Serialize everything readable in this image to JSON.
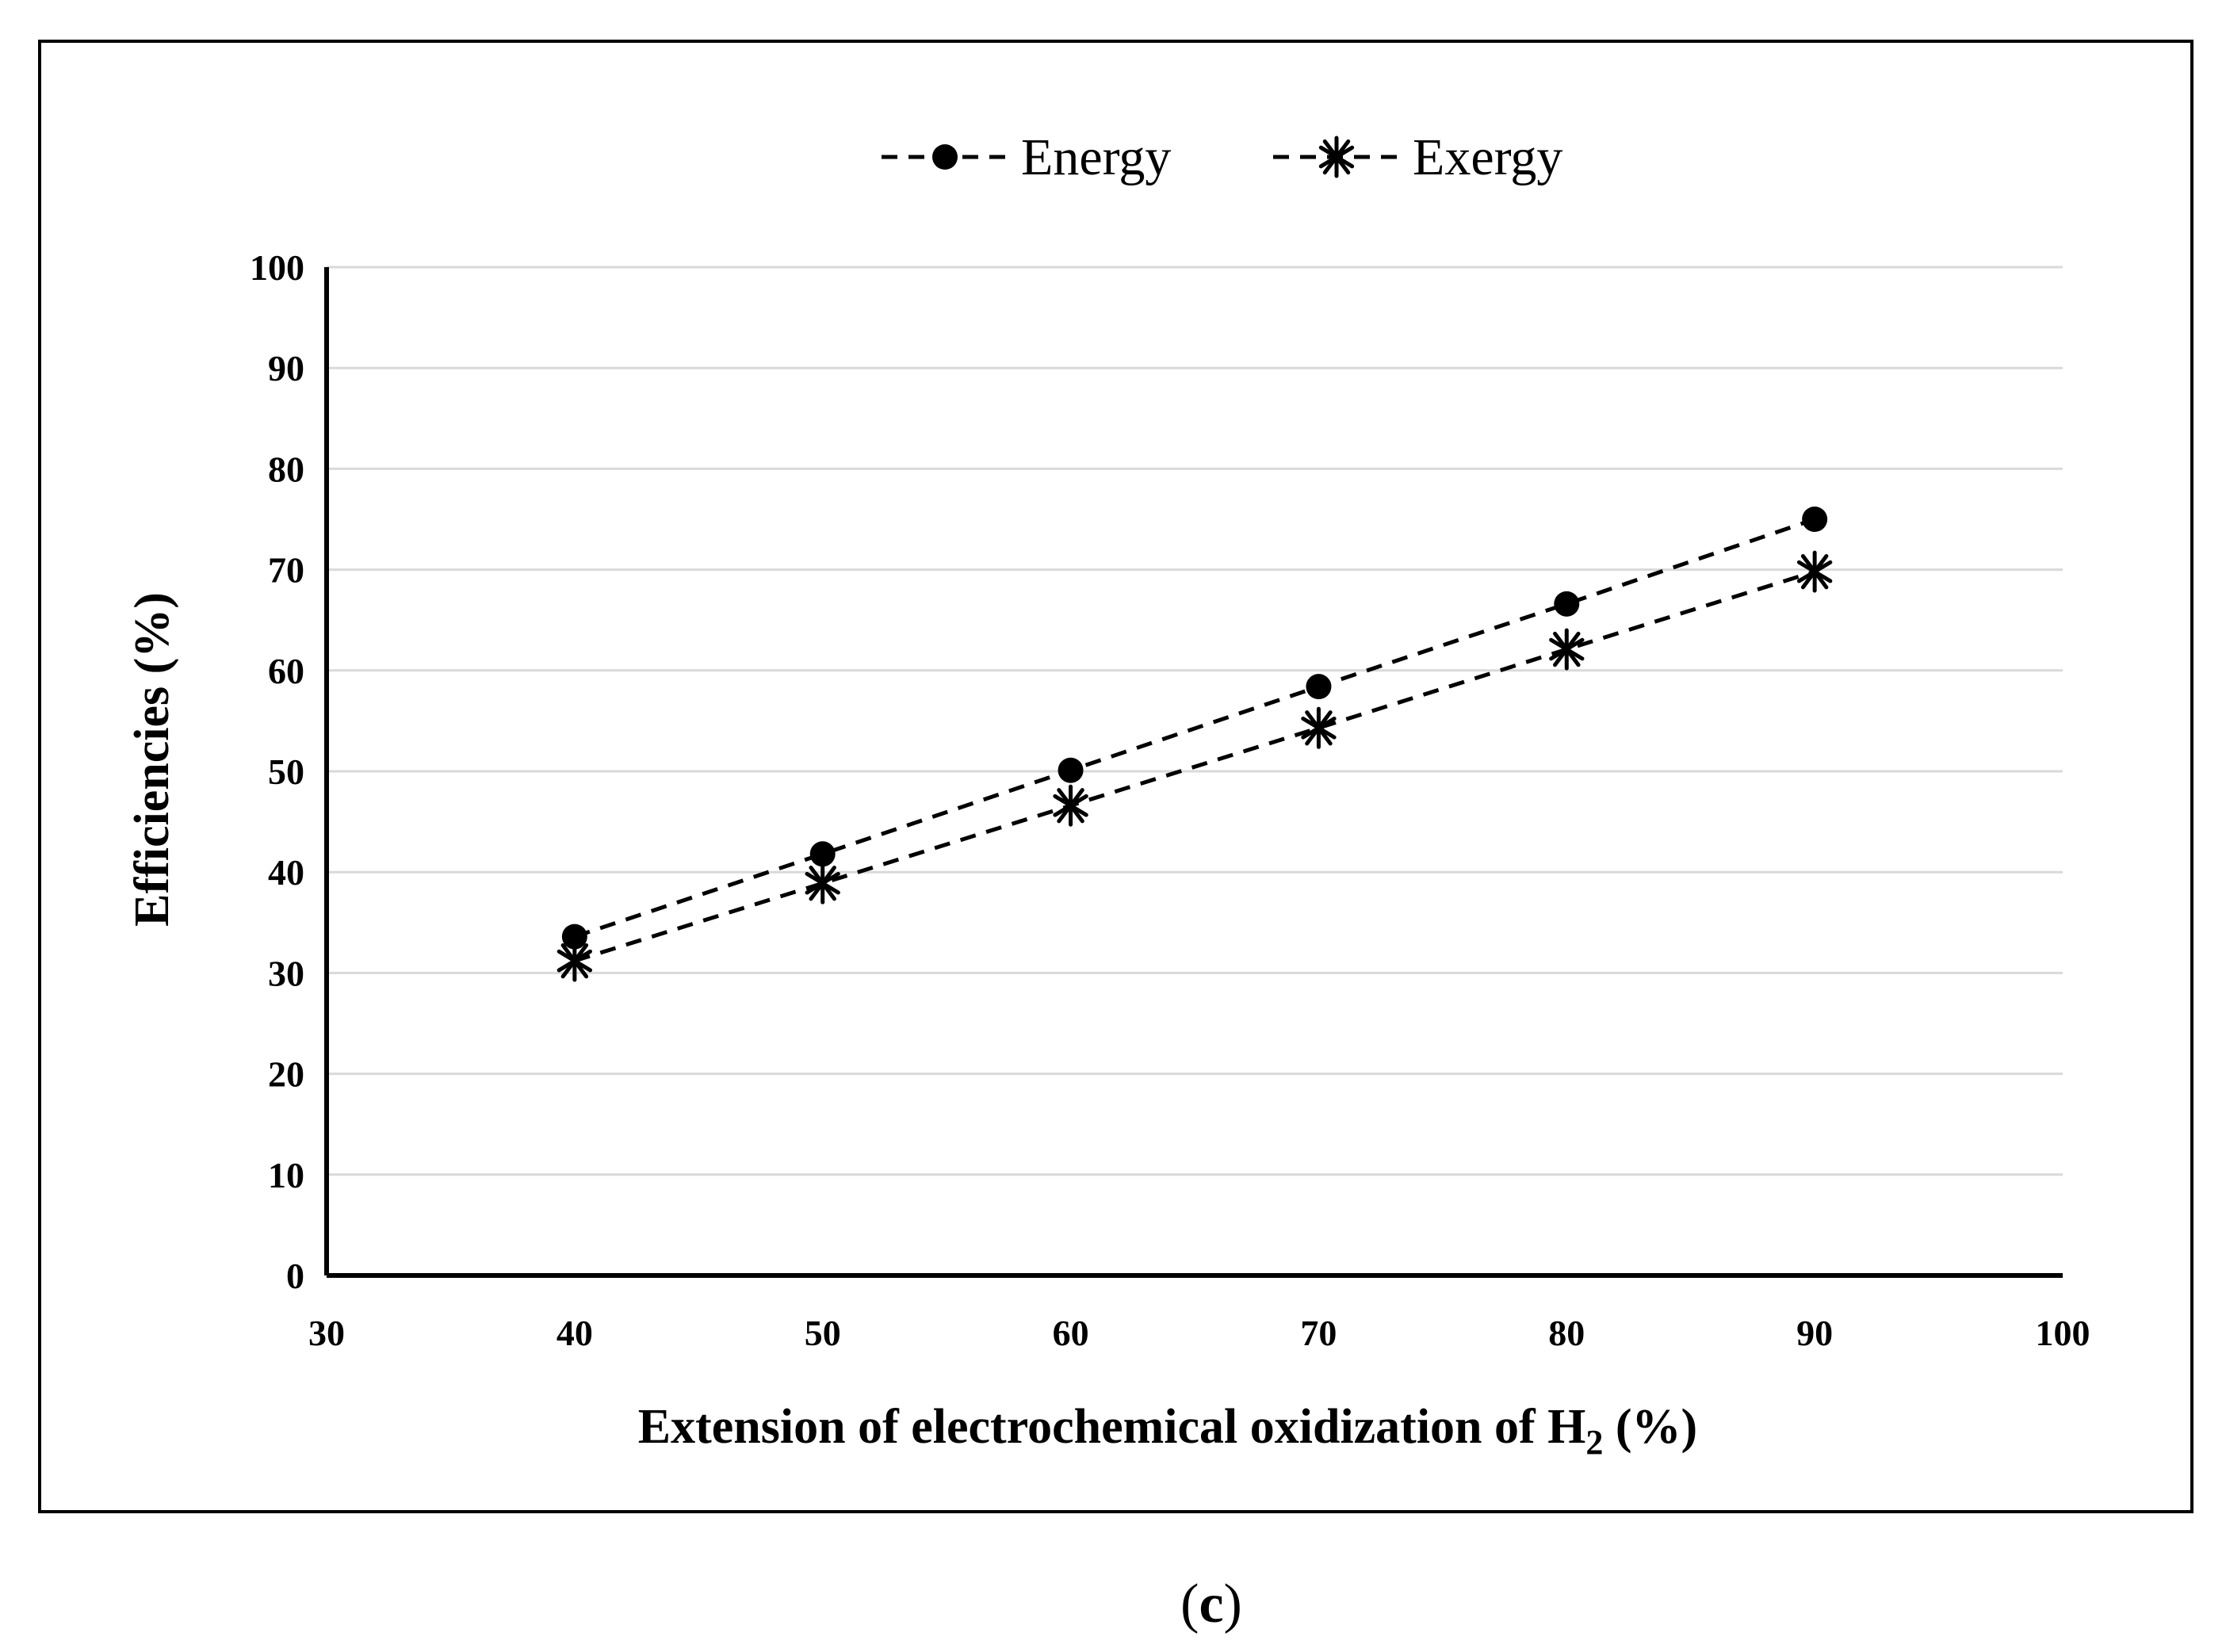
{
  "chart_data": {
    "type": "line",
    "title": "",
    "xlabel": "Extension of electrochemical oxidization of H",
    "xlabel_subscript": "2",
    "xlabel_suffix": " (%)",
    "ylabel": "Efficiencies (%)",
    "xlim": [
      30,
      100
    ],
    "ylim": [
      0,
      100
    ],
    "x_ticks": [
      30,
      40,
      50,
      60,
      70,
      80,
      90,
      100
    ],
    "y_ticks": [
      0,
      10,
      20,
      30,
      40,
      50,
      60,
      70,
      80,
      90,
      100
    ],
    "grid": "horizontal",
    "legend_position": "top-center",
    "line_style": "dashed",
    "line_color": "#000000",
    "x": [
      40,
      50,
      60,
      70,
      80,
      90
    ],
    "series": [
      {
        "name": "Energy",
        "marker": "circle",
        "values": [
          33.6,
          41.8,
          50.1,
          58.4,
          66.6,
          75.0
        ]
      },
      {
        "name": "Exergy",
        "marker": "asterisk",
        "values": [
          31.2,
          38.9,
          46.6,
          54.3,
          62.1,
          69.8
        ]
      }
    ]
  },
  "caption": {
    "open": "(",
    "letter": "c",
    "close": ")"
  }
}
